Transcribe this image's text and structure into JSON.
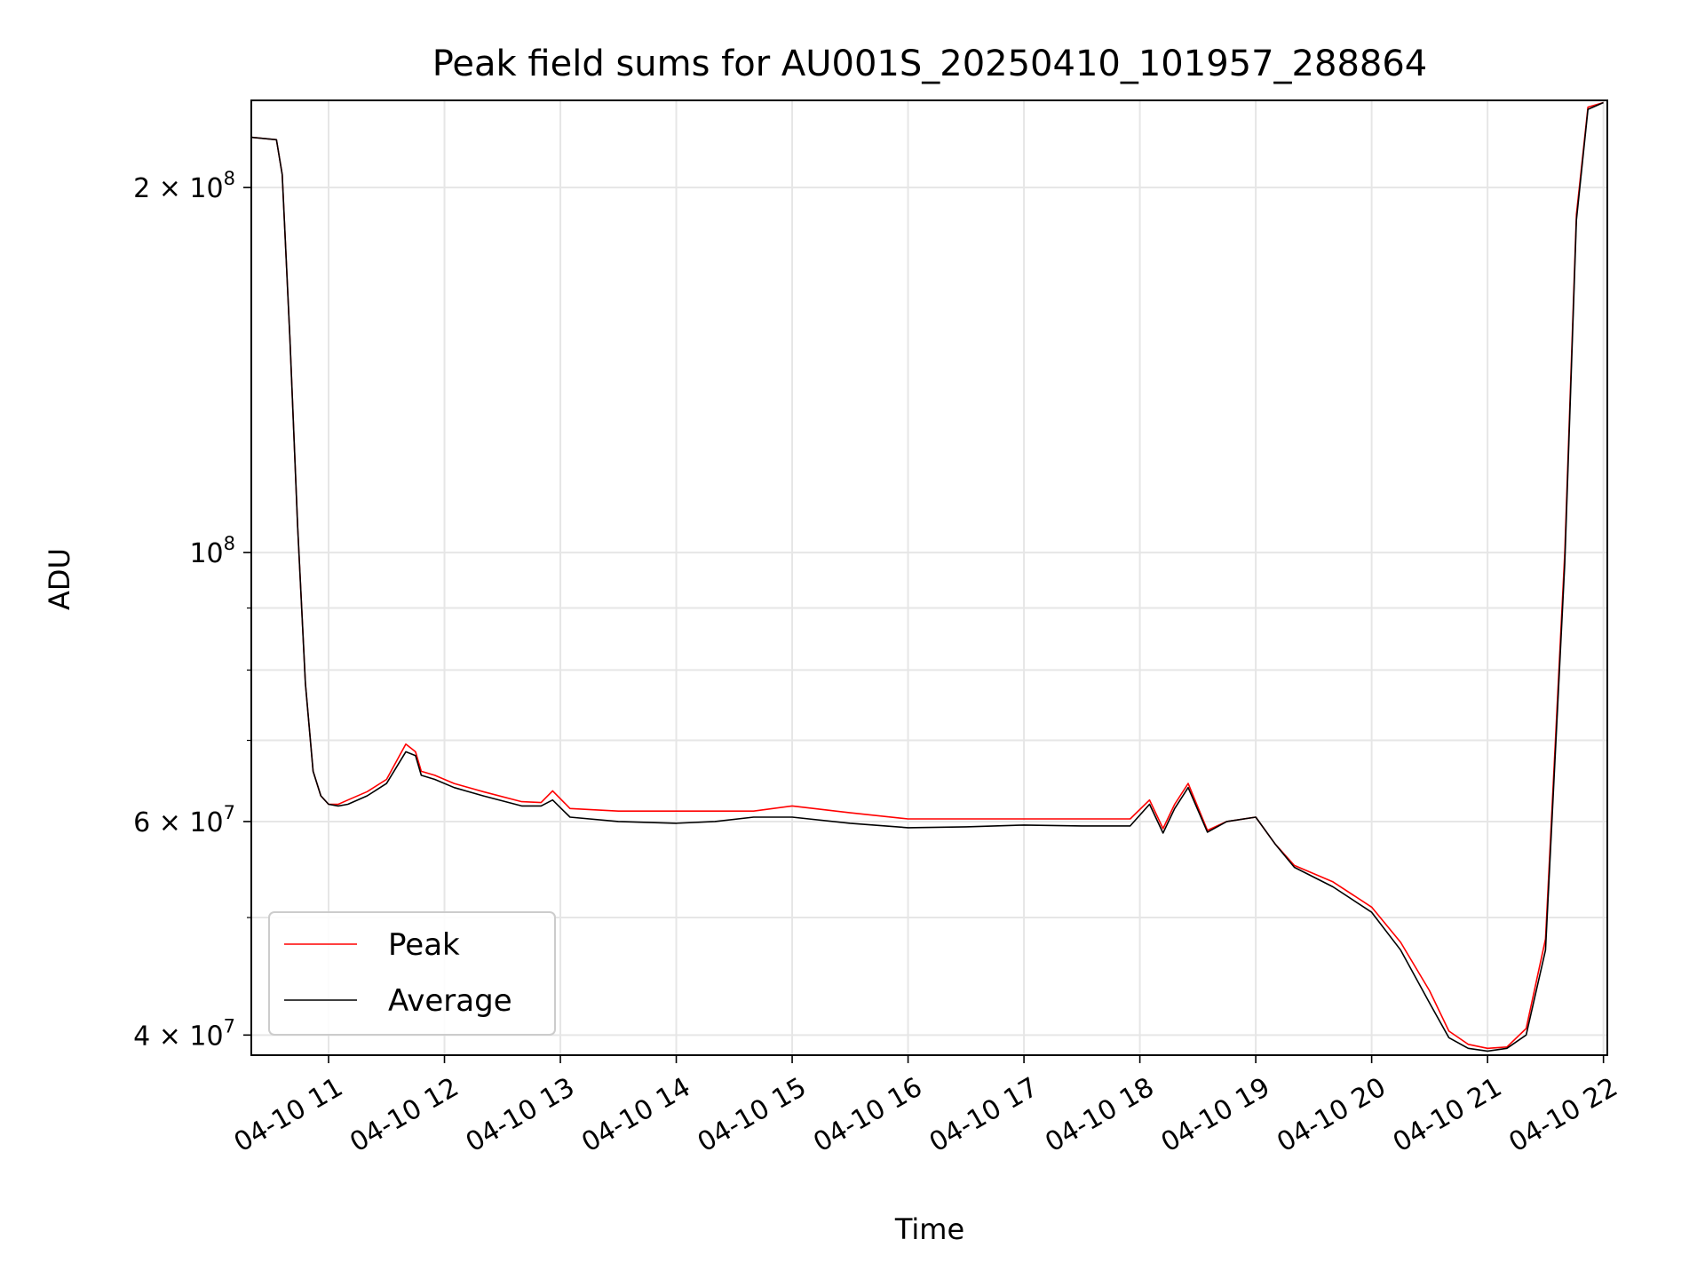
{
  "chart_data": {
    "type": "line",
    "title": "Peak field sums for AU001S_20250410_101957_288864",
    "xlabel": "Time",
    "ylabel": "ADU",
    "yscale": "log",
    "grid": true,
    "legend_position": "lower-left",
    "xlim": [
      "2025-04-10T10:20",
      "2025-04-10T22:02"
    ],
    "ylim": [
      38500000,
      236000000
    ],
    "x_ticks": [
      {
        "value": "2025-04-10T11:00",
        "label": "04-10 11"
      },
      {
        "value": "2025-04-10T12:00",
        "label": "04-10 12"
      },
      {
        "value": "2025-04-10T13:00",
        "label": "04-10 13"
      },
      {
        "value": "2025-04-10T14:00",
        "label": "04-10 14"
      },
      {
        "value": "2025-04-10T15:00",
        "label": "04-10 15"
      },
      {
        "value": "2025-04-10T16:00",
        "label": "04-10 16"
      },
      {
        "value": "2025-04-10T17:00",
        "label": "04-10 17"
      },
      {
        "value": "2025-04-10T18:00",
        "label": "04-10 18"
      },
      {
        "value": "2025-04-10T19:00",
        "label": "04-10 19"
      },
      {
        "value": "2025-04-10T20:00",
        "label": "04-10 20"
      },
      {
        "value": "2025-04-10T21:00",
        "label": "04-10 21"
      },
      {
        "value": "2025-04-10T22:00",
        "label": "04-10 22"
      }
    ],
    "y_major_ticks": [
      {
        "value": 40000000,
        "label": "4 × 10⁷",
        "mantissa": "4 × 10",
        "exponent": "7"
      },
      {
        "value": 60000000,
        "label": "6 × 10⁷",
        "mantissa": "6 × 10",
        "exponent": "7"
      },
      {
        "value": 100000000,
        "label": "10⁸",
        "mantissa": "10",
        "exponent": "8"
      },
      {
        "value": 200000000,
        "label": "2 × 10⁸",
        "mantissa": "2 × 10",
        "exponent": "8"
      }
    ],
    "y_minor_ticks": [
      50000000,
      70000000,
      80000000,
      90000000
    ],
    "series": [
      {
        "name": "Peak",
        "color": "#ff0000",
        "x": [
          "2025-04-10T10:20",
          "2025-04-10T10:33",
          "2025-04-10T10:36",
          "2025-04-10T10:40",
          "2025-04-10T10:44",
          "2025-04-10T10:48",
          "2025-04-10T10:52",
          "2025-04-10T10:56",
          "2025-04-10T11:00",
          "2025-04-10T11:05",
          "2025-04-10T11:10",
          "2025-04-10T11:20",
          "2025-04-10T11:30",
          "2025-04-10T11:40",
          "2025-04-10T11:45",
          "2025-04-10T11:48",
          "2025-04-10T11:55",
          "2025-04-10T12:05",
          "2025-04-10T12:20",
          "2025-04-10T12:40",
          "2025-04-10T12:50",
          "2025-04-10T12:56",
          "2025-04-10T13:05",
          "2025-04-10T13:30",
          "2025-04-10T14:00",
          "2025-04-10T14:20",
          "2025-04-10T14:40",
          "2025-04-10T15:00",
          "2025-04-10T15:30",
          "2025-04-10T16:00",
          "2025-04-10T16:30",
          "2025-04-10T17:00",
          "2025-04-10T17:30",
          "2025-04-10T17:55",
          "2025-04-10T18:05",
          "2025-04-10T18:12",
          "2025-04-10T18:18",
          "2025-04-10T18:25",
          "2025-04-10T18:35",
          "2025-04-10T18:45",
          "2025-04-10T19:00",
          "2025-04-10T19:10",
          "2025-04-10T19:20",
          "2025-04-10T19:40",
          "2025-04-10T20:00",
          "2025-04-10T20:15",
          "2025-04-10T20:30",
          "2025-04-10T20:40",
          "2025-04-10T20:50",
          "2025-04-10T21:00",
          "2025-04-10T21:10",
          "2025-04-10T21:20",
          "2025-04-10T21:30",
          "2025-04-10T21:40",
          "2025-04-10T21:46",
          "2025-04-10T21:52",
          "2025-04-10T22:00"
        ],
        "y": [
          220000000,
          219000000,
          205000000,
          150000000,
          105000000,
          78000000,
          66000000,
          63000000,
          62000000,
          62000000,
          62500000,
          63500000,
          65000000,
          69500000,
          68500000,
          66000000,
          65500000,
          64500000,
          63500000,
          62300000,
          62200000,
          63600000,
          61500000,
          61200000,
          61200000,
          61200000,
          61200000,
          61800000,
          61000000,
          60300000,
          60300000,
          60300000,
          60300000,
          60300000,
          62500000,
          59200000,
          62000000,
          64500000,
          59000000,
          60000000,
          60500000,
          57500000,
          55200000,
          53500000,
          51000000,
          47700000,
          43500000,
          40300000,
          39300000,
          39000000,
          39100000,
          40500000,
          48000000,
          100000000,
          190000000,
          233000000,
          235000000
        ]
      },
      {
        "name": "Average",
        "color": "#000000",
        "x": [
          "2025-04-10T10:20",
          "2025-04-10T10:33",
          "2025-04-10T10:36",
          "2025-04-10T10:40",
          "2025-04-10T10:44",
          "2025-04-10T10:48",
          "2025-04-10T10:52",
          "2025-04-10T10:56",
          "2025-04-10T11:00",
          "2025-04-10T11:05",
          "2025-04-10T11:10",
          "2025-04-10T11:20",
          "2025-04-10T11:30",
          "2025-04-10T11:40",
          "2025-04-10T11:45",
          "2025-04-10T11:48",
          "2025-04-10T11:55",
          "2025-04-10T12:05",
          "2025-04-10T12:20",
          "2025-04-10T12:40",
          "2025-04-10T12:50",
          "2025-04-10T12:56",
          "2025-04-10T13:05",
          "2025-04-10T13:30",
          "2025-04-10T14:00",
          "2025-04-10T14:20",
          "2025-04-10T14:40",
          "2025-04-10T15:00",
          "2025-04-10T15:30",
          "2025-04-10T16:00",
          "2025-04-10T16:30",
          "2025-04-10T17:00",
          "2025-04-10T17:30",
          "2025-04-10T17:55",
          "2025-04-10T18:05",
          "2025-04-10T18:12",
          "2025-04-10T18:18",
          "2025-04-10T18:25",
          "2025-04-10T18:35",
          "2025-04-10T18:45",
          "2025-04-10T19:00",
          "2025-04-10T19:10",
          "2025-04-10T19:20",
          "2025-04-10T19:40",
          "2025-04-10T20:00",
          "2025-04-10T20:15",
          "2025-04-10T20:30",
          "2025-04-10T20:40",
          "2025-04-10T20:50",
          "2025-04-10T21:00",
          "2025-04-10T21:10",
          "2025-04-10T21:20",
          "2025-04-10T21:30",
          "2025-04-10T21:40",
          "2025-04-10T21:46",
          "2025-04-10T21:52",
          "2025-04-10T22:00"
        ],
        "y": [
          220000000,
          219000000,
          205000000,
          150000000,
          105000000,
          78000000,
          66000000,
          63000000,
          62000000,
          61800000,
          62000000,
          63000000,
          64500000,
          68500000,
          68000000,
          65500000,
          65000000,
          64000000,
          63000000,
          61800000,
          61800000,
          62500000,
          60500000,
          60000000,
          59800000,
          60000000,
          60500000,
          60500000,
          59800000,
          59300000,
          59400000,
          59600000,
          59500000,
          59500000,
          62000000,
          58700000,
          61500000,
          64000000,
          58800000,
          60000000,
          60500000,
          57500000,
          55000000,
          53000000,
          50500000,
          47000000,
          42500000,
          39800000,
          39000000,
          38800000,
          39000000,
          40000000,
          47000000,
          98000000,
          188000000,
          232000000,
          235000000
        ]
      }
    ]
  }
}
